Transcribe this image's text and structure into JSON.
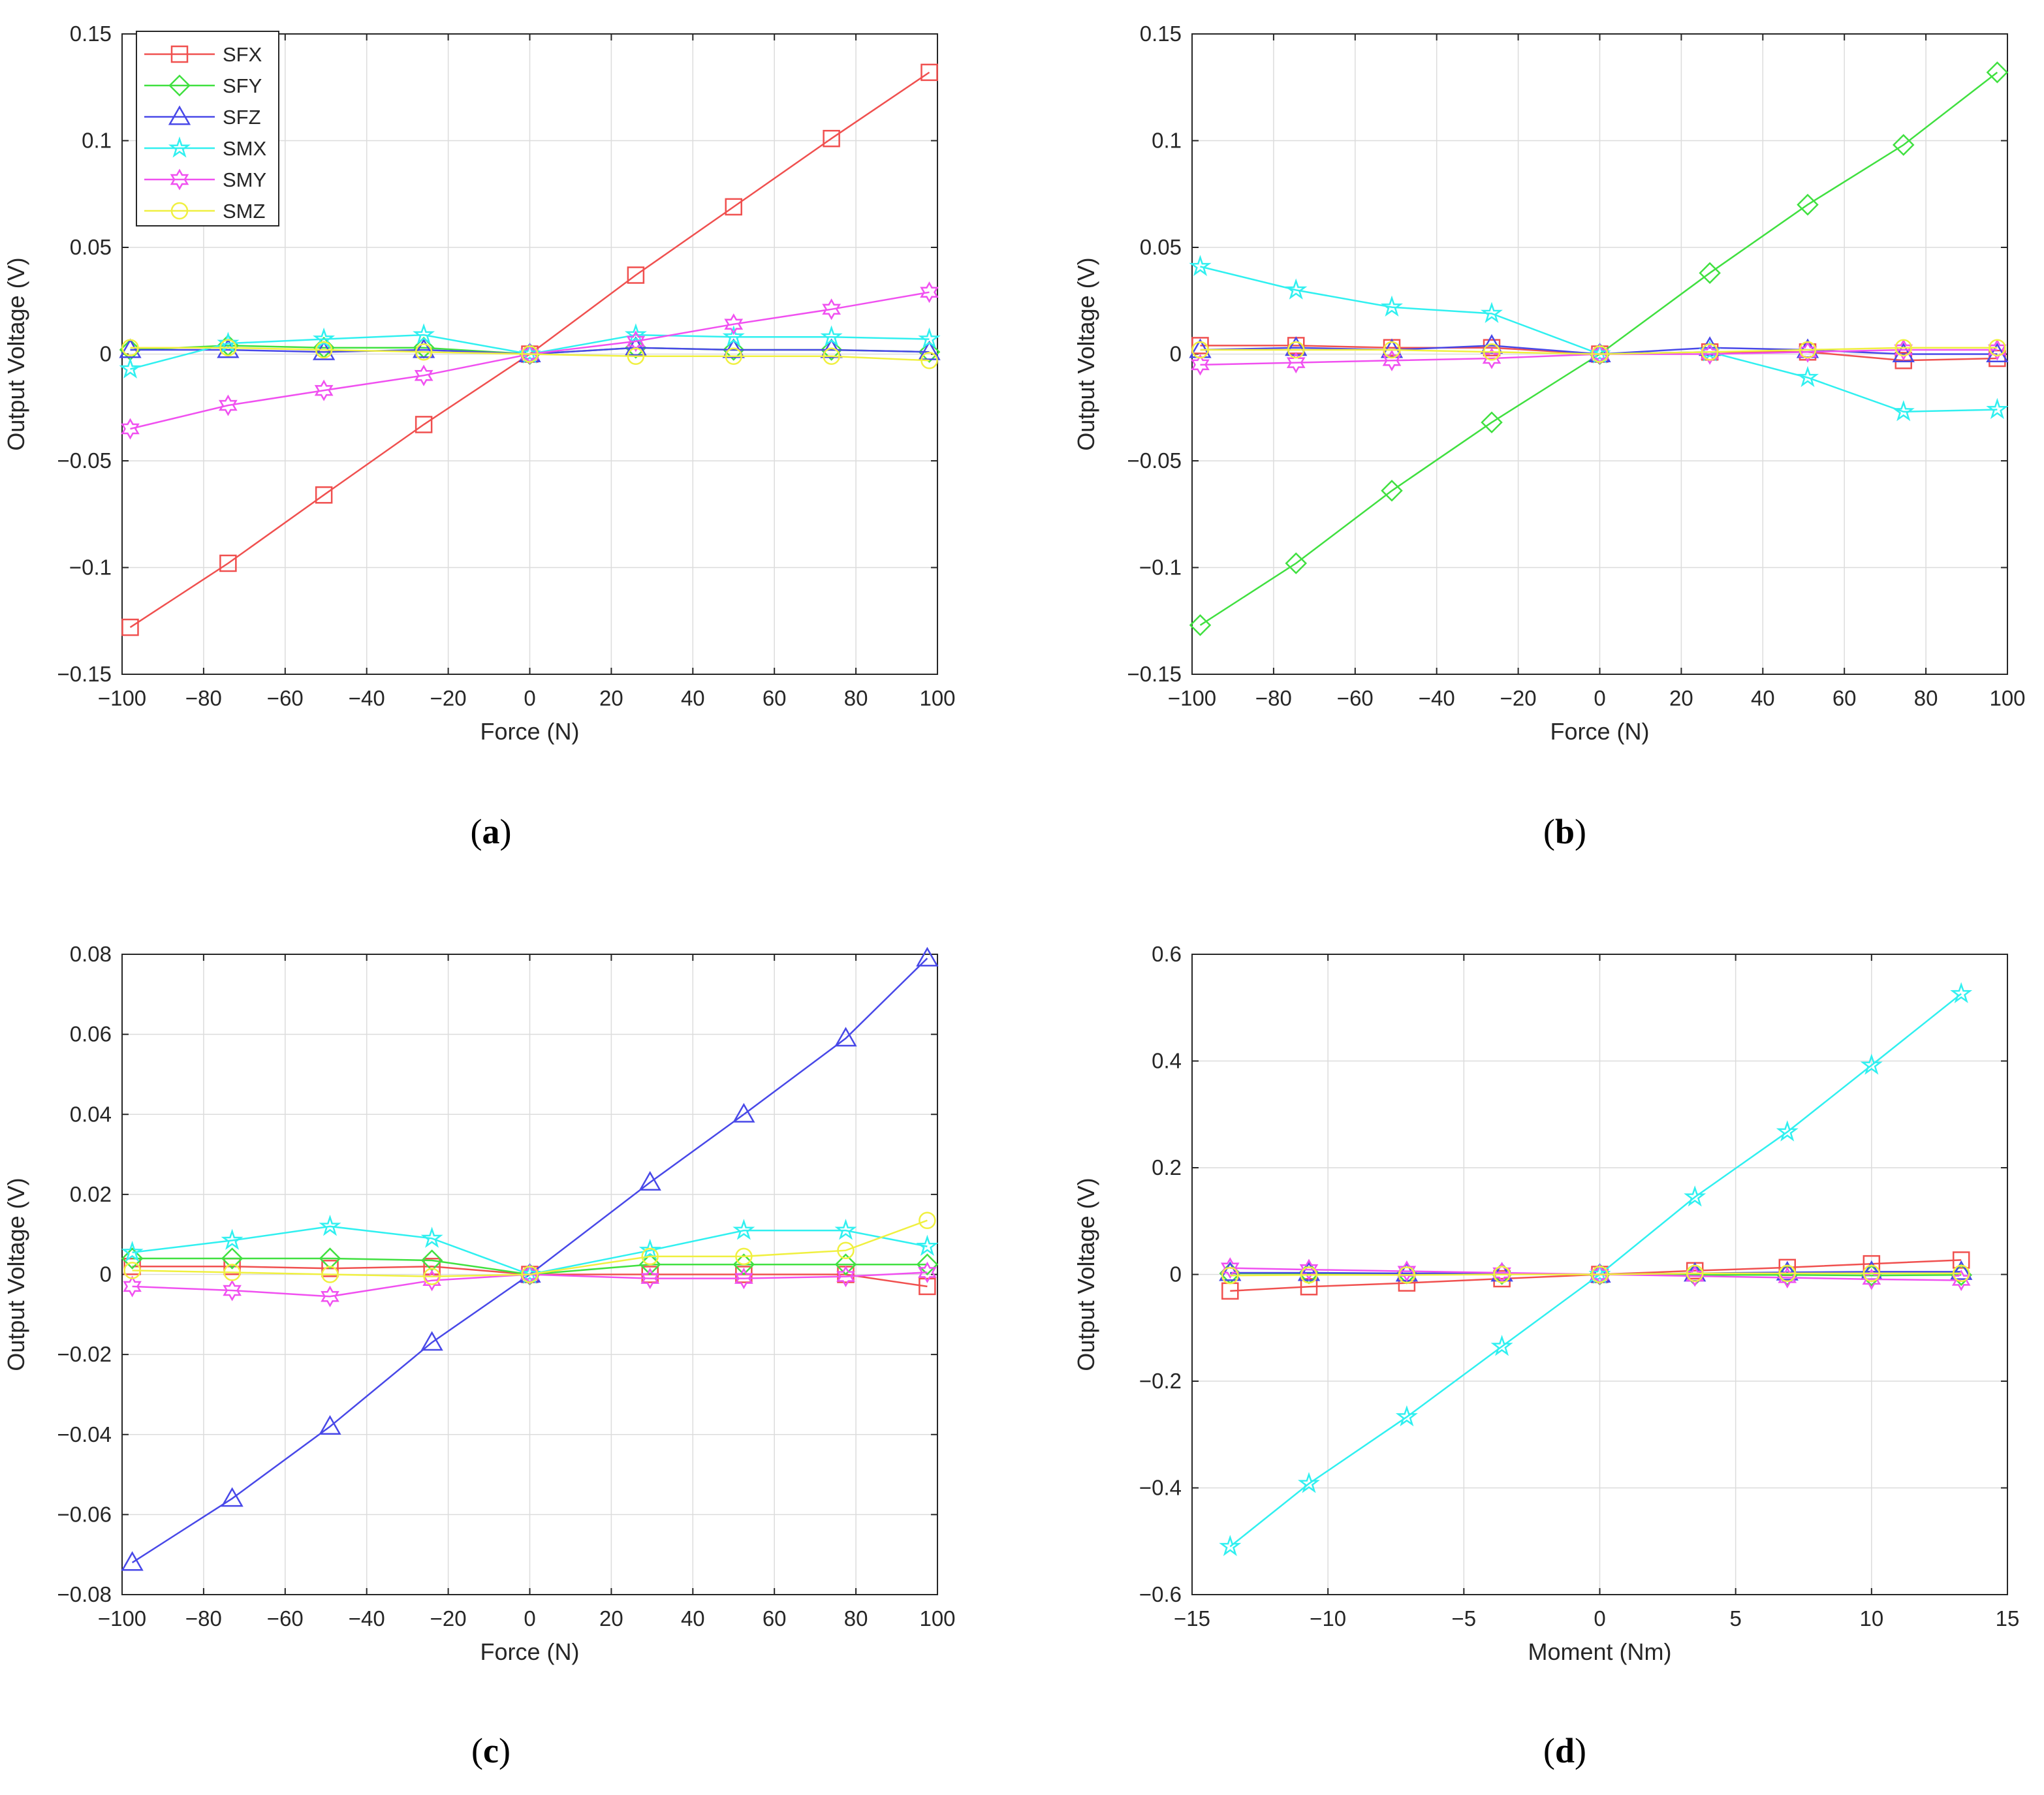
{
  "figure": {
    "panels": [
      {
        "id": "a",
        "caption_letter": "a"
      },
      {
        "id": "b",
        "caption_letter": "b"
      },
      {
        "id": "c",
        "caption_letter": "c"
      },
      {
        "id": "d",
        "caption_letter": "d"
      }
    ],
    "legend": [
      "SFX",
      "SFY",
      "SFZ",
      "SMX",
      "SMY",
      "SMZ"
    ]
  },
  "series_colors": {
    "SFX": "#f0504f",
    "SFY": "#40e040",
    "SFZ": "#4848e8",
    "SMX": "#30f0f0",
    "SMY": "#f050f0",
    "SMZ": "#f0f040"
  },
  "series_markers": {
    "SFX": "square-icon",
    "SFY": "diamond-icon",
    "SFZ": "triangle-icon",
    "SMX": "star-icon",
    "SMY": "hexagram-icon",
    "SMZ": "circle-icon"
  },
  "chart_data": [
    {
      "type": "line",
      "panel": "a",
      "xlabel": "Force (N)",
      "ylabel": "Output Voltage (V)",
      "xlim": [
        -100,
        100
      ],
      "ylim": [
        -0.15,
        0.15
      ],
      "xticks": [
        -100,
        -80,
        -60,
        -40,
        -20,
        0,
        20,
        40,
        60,
        80,
        100
      ],
      "xtick_labels": [
        "−100",
        "−80",
        "−60",
        "−40",
        "−20",
        "0",
        "20",
        "40",
        "60",
        "80",
        "100"
      ],
      "yticks": [
        -0.15,
        -0.1,
        -0.05,
        0,
        0.05,
        0.1,
        0.15
      ],
      "ytick_labels": [
        "−0.15",
        "−0.1",
        "−0.05",
        "0",
        "0.05",
        "0.1",
        "0.15"
      ],
      "grid": true,
      "legend": "top-left",
      "x": [
        -98,
        -74,
        -50.5,
        -26,
        0,
        26,
        50,
        74,
        98
      ],
      "series": [
        {
          "name": "SFX",
          "values": [
            -0.128,
            -0.098,
            -0.066,
            -0.033,
            0,
            0.037,
            0.069,
            0.101,
            0.132
          ]
        },
        {
          "name": "SFY",
          "values": [
            0.002,
            0.004,
            0.003,
            0.003,
            0,
            0.003,
            0.002,
            0.002,
            0.001
          ]
        },
        {
          "name": "SFZ",
          "values": [
            0.002,
            0.002,
            0.001,
            0.002,
            0,
            0.003,
            0.002,
            0.002,
            0.001
          ]
        },
        {
          "name": "SMX",
          "values": [
            -0.007,
            0.005,
            0.007,
            0.009,
            0,
            0.009,
            0.008,
            0.008,
            0.007
          ]
        },
        {
          "name": "SMY",
          "values": [
            -0.035,
            -0.024,
            -0.017,
            -0.01,
            0,
            0.006,
            0.014,
            0.021,
            0.029
          ]
        },
        {
          "name": "SMZ",
          "values": [
            0.003,
            0.003,
            0.002,
            0.001,
            0,
            -0.001,
            -0.001,
            -0.001,
            -0.003
          ]
        }
      ]
    },
    {
      "type": "line",
      "panel": "b",
      "xlabel": "Force (N)",
      "ylabel": "Output Voltage (V)",
      "xlim": [
        -100,
        100
      ],
      "ylim": [
        -0.15,
        0.15
      ],
      "xticks": [
        -100,
        -80,
        -60,
        -40,
        -20,
        0,
        20,
        40,
        60,
        80,
        100
      ],
      "xtick_labels": [
        "−100",
        "−80",
        "−60",
        "−40",
        "−20",
        "0",
        "20",
        "40",
        "60",
        "80",
        "100"
      ],
      "yticks": [
        -0.15,
        -0.1,
        -0.05,
        0,
        0.05,
        0.1,
        0.15
      ],
      "ytick_labels": [
        "−0.15",
        "−0.1",
        "−0.05",
        "0",
        "0.05",
        "0.1",
        "0.15"
      ],
      "grid": true,
      "x": [
        -98,
        -74.5,
        -51,
        -26.5,
        0,
        27,
        51,
        74.5,
        97.5
      ],
      "series": [
        {
          "name": "SFX",
          "values": [
            0.004,
            0.004,
            0.003,
            0.003,
            0,
            0.001,
            0.001,
            -0.003,
            -0.002
          ]
        },
        {
          "name": "SFY",
          "values": [
            -0.127,
            -0.098,
            -0.064,
            -0.032,
            0,
            0.038,
            0.07,
            0.098,
            0.132
          ]
        },
        {
          "name": "SFZ",
          "values": [
            0.002,
            0.003,
            0.002,
            0.004,
            0,
            0.003,
            0.002,
            0.0,
            0.0
          ]
        },
        {
          "name": "SMX",
          "values": [
            0.041,
            0.03,
            0.022,
            0.019,
            0,
            0.001,
            -0.011,
            -0.027,
            -0.026
          ]
        },
        {
          "name": "SMY",
          "values": [
            -0.005,
            -0.004,
            -0.003,
            -0.002,
            0,
            0.0,
            0.001,
            0.002,
            0.002
          ]
        },
        {
          "name": "SMZ",
          "values": [
            0.002,
            0.002,
            0.002,
            0.001,
            0,
            0.001,
            0.002,
            0.003,
            0.003
          ]
        }
      ]
    },
    {
      "type": "line",
      "panel": "c",
      "xlabel": "Force (N)",
      "ylabel": "Output Voltage (V)",
      "xlim": [
        -100,
        100
      ],
      "ylim": [
        -0.08,
        0.08
      ],
      "xticks": [
        -100,
        -80,
        -60,
        -40,
        -20,
        0,
        20,
        40,
        60,
        80,
        100
      ],
      "xtick_labels": [
        "−100",
        "−80",
        "−60",
        "−40",
        "−20",
        "0",
        "20",
        "40",
        "60",
        "80",
        "100"
      ],
      "yticks": [
        -0.08,
        -0.06,
        -0.04,
        -0.02,
        0,
        0.02,
        0.04,
        0.06,
        0.08
      ],
      "ytick_labels": [
        "−0.08",
        "−0.06",
        "−0.04",
        "−0.02",
        "0",
        "0.02",
        "0.04",
        "0.06",
        "0.08"
      ],
      "grid": true,
      "x": [
        -97.5,
        -73,
        -49,
        -24,
        0,
        29.5,
        52.5,
        77.5,
        97.5
      ],
      "series": [
        {
          "name": "SFX",
          "values": [
            0.002,
            0.002,
            0.0015,
            0.002,
            0,
            0.0,
            0.0,
            0.0,
            -0.003
          ]
        },
        {
          "name": "SFY",
          "values": [
            0.004,
            0.004,
            0.004,
            0.0035,
            0,
            0.0025,
            0.0025,
            0.0025,
            0.0025
          ]
        },
        {
          "name": "SFZ",
          "values": [
            -0.072,
            -0.056,
            -0.038,
            -0.017,
            0,
            0.023,
            0.04,
            0.059,
            0.079
          ]
        },
        {
          "name": "SMX",
          "values": [
            0.0055,
            0.0085,
            0.012,
            0.009,
            0,
            0.006,
            0.011,
            0.011,
            0.007
          ]
        },
        {
          "name": "SMY",
          "values": [
            -0.003,
            -0.004,
            -0.0055,
            -0.0015,
            0,
            -0.001,
            -0.001,
            -0.0005,
            0.0005
          ]
        },
        {
          "name": "SMZ",
          "values": [
            0.001,
            0.0005,
            0.0,
            -0.0005,
            0,
            0.0045,
            0.0045,
            0.006,
            0.0135
          ]
        }
      ]
    },
    {
      "type": "line",
      "panel": "d",
      "xlabel": "Moment (Nm)",
      "ylabel": "Output Voltage (V)",
      "xlim": [
        -15,
        15
      ],
      "ylim": [
        -0.6,
        0.6
      ],
      "xticks": [
        -15,
        -10,
        -5,
        0,
        5,
        10,
        15
      ],
      "xtick_labels": [
        "−15",
        "−10",
        "−5",
        "0",
        "5",
        "10",
        "15"
      ],
      "yticks": [
        -0.6,
        -0.4,
        -0.2,
        0,
        0.2,
        0.4,
        0.6
      ],
      "ytick_labels": [
        "−0.6",
        "−0.4",
        "−0.2",
        "0",
        "0.2",
        "0.4",
        "0.6"
      ],
      "grid": true,
      "x": [
        -13.6,
        -10.7,
        -7.1,
        -3.6,
        0,
        3.5,
        6.9,
        10.0,
        13.3
      ],
      "series": [
        {
          "name": "SFX",
          "values": [
            -0.031,
            -0.023,
            -0.016,
            -0.008,
            0,
            0.007,
            0.013,
            0.02,
            0.027
          ]
        },
        {
          "name": "SFY",
          "values": [
            0.002,
            0.002,
            0.002,
            0.001,
            0,
            -0.001,
            -0.001,
            -0.002,
            -0.001
          ]
        },
        {
          "name": "SFZ",
          "values": [
            0.003,
            0.003,
            0.002,
            0.002,
            0,
            0.002,
            0.004,
            0.005,
            0.005
          ]
        },
        {
          "name": "SMX",
          "values": [
            -0.51,
            -0.392,
            -0.267,
            -0.135,
            0,
            0.145,
            0.267,
            0.392,
            0.526
          ]
        },
        {
          "name": "SMY",
          "values": [
            0.012,
            0.009,
            0.006,
            0.003,
            0,
            -0.003,
            -0.006,
            -0.009,
            -0.011
          ]
        },
        {
          "name": "SMZ",
          "values": [
            -0.002,
            -0.001,
            -0.001,
            0.0,
            0,
            0.002,
            0.002,
            0.002,
            0.002
          ]
        }
      ]
    }
  ]
}
